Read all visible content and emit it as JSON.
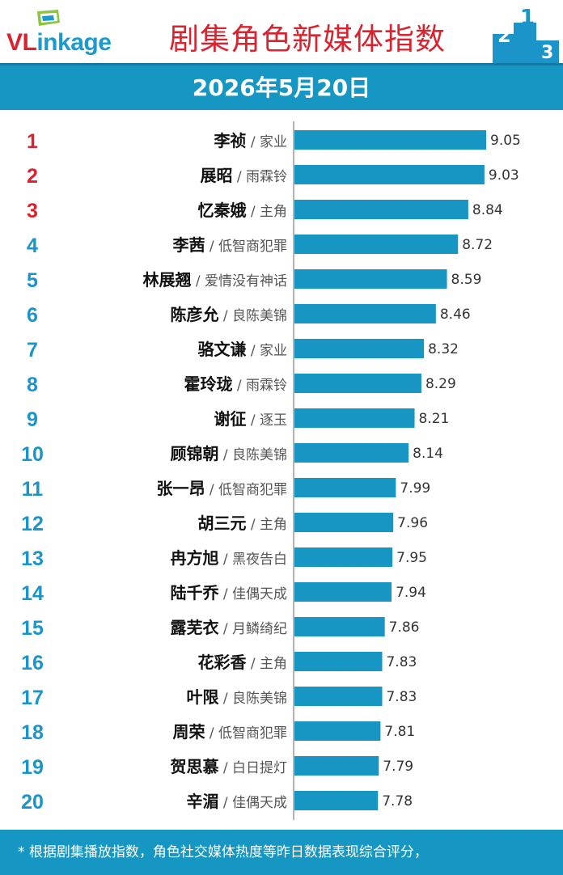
{
  "header": {
    "logo_text_red": "VL",
    "logo_text_blue": "inkage",
    "title": "剧集角色新媒体指数"
  },
  "date_bar": {
    "date": "2026年5月20日"
  },
  "footer": {
    "note": "* 根据剧集播放指数，角色社交媒体热度等昨日数据表现综合评分，"
  },
  "colors": {
    "brand_blue": "#1696c2",
    "bar": "#1796c4",
    "rank_top3": "#d9232e",
    "rank_other": "#1a94c9",
    "title_red": "#d9232e"
  },
  "chart_data": {
    "type": "bar",
    "orientation": "horizontal",
    "xlim": [
      6.8,
      9.6
    ],
    "ranks": [
      "1",
      "2",
      "3",
      "4",
      "5",
      "6",
      "7",
      "8",
      "9",
      "10",
      "11",
      "12",
      "13",
      "14",
      "15",
      "16",
      "17",
      "18",
      "19",
      "20"
    ],
    "roles": [
      "李祯",
      "展昭",
      "忆秦娥",
      "李茜",
      "林展翘",
      "陈彦允",
      "骆文谦",
      "霍玲珑",
      "谢征",
      "顾锦朝",
      "张一昂",
      "胡三元",
      "冉方旭",
      "陆千乔",
      "露芜衣",
      "花彩香",
      "叶限",
      "周荣",
      "贺思慕",
      "辛湄"
    ],
    "dramas": [
      "家业",
      "雨霖铃",
      "主角",
      "低智商犯罪",
      "爱情没有神话",
      "良陈美锦",
      "家业",
      "雨霖铃",
      "逐玉",
      "良陈美锦",
      "低智商犯罪",
      "主角",
      "黑夜告白",
      "佳偶天成",
      "月鳞绮纪",
      "主角",
      "良陈美锦",
      "低智商犯罪",
      "白日提灯",
      "佳偶天成"
    ],
    "values": [
      9.05,
      9.03,
      8.84,
      8.72,
      8.59,
      8.46,
      8.32,
      8.29,
      8.21,
      8.14,
      7.99,
      7.96,
      7.95,
      7.94,
      7.86,
      7.83,
      7.83,
      7.81,
      7.79,
      7.78
    ],
    "value_labels": [
      "9.05",
      "9.03",
      "8.84",
      "8.72",
      "8.59",
      "8.46",
      "8.32",
      "8.29",
      "8.21",
      "8.14",
      "7.99",
      "7.96",
      "7.95",
      "7.94",
      "7.86",
      "7.83",
      "7.83",
      "7.81",
      "7.79",
      "7.78"
    ]
  }
}
